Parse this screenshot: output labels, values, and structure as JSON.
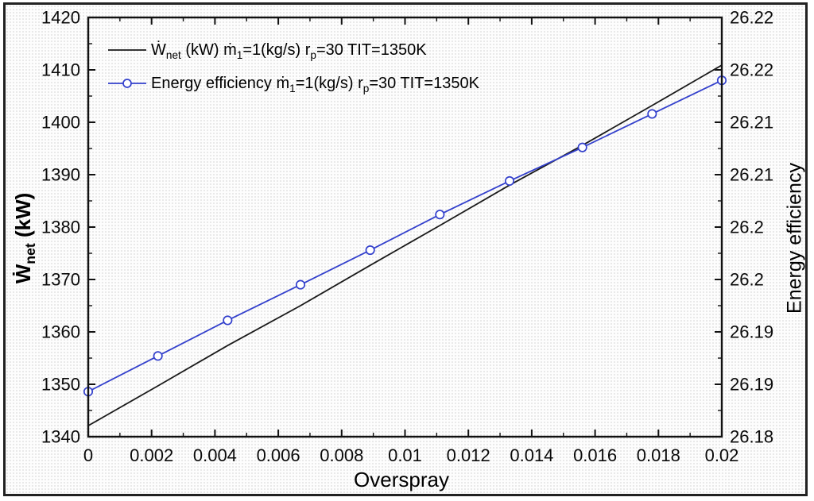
{
  "chart_data": {
    "type": "line",
    "title": "",
    "xlabel": "Overspray",
    "grid": false,
    "legend_position": "top-left-inside",
    "x": [
      0,
      0.0022,
      0.0044,
      0.0067,
      0.0089,
      0.0111,
      0.0133,
      0.0156,
      0.0178,
      0.02
    ],
    "series": [
      {
        "name": "Ẇ[net] (kW) ṁ[1]=1(kg/s) r[p]=30 TIT=1350K",
        "axis": "left",
        "color": "#1a1a1a",
        "marker": "none",
        "values": [
          1342.1,
          1349.7,
          1357.4,
          1365.0,
          1372.7,
          1380.3,
          1388.0,
          1395.6,
          1403.2,
          1410.9
        ]
      },
      {
        "name": "Energy efficiency ṁ[1]=1(kg/s) r[p]=30 TIT=1350K",
        "axis": "right",
        "color": "#3340cc",
        "marker": "circle-open",
        "values": [
          26.1843,
          26.1877,
          26.1911,
          26.1945,
          26.1978,
          26.2012,
          26.2044,
          26.2076,
          26.2108,
          26.214
        ]
      }
    ],
    "x_axis": {
      "label": "Overspray",
      "min": 0,
      "max": 0.02,
      "major_step": 0.002,
      "minor_step": 0.001,
      "tick_labels": [
        "0",
        "0.002",
        "0.004",
        "0.006",
        "0.008",
        "0.01",
        "0.012",
        "0.014",
        "0.016",
        "0.018",
        "0.02"
      ]
    },
    "left_axis": {
      "label": "Ẇ[net] (kW)",
      "min": 1340,
      "max": 1420,
      "major_step": 10,
      "minor_step": 5,
      "tick_labels": [
        "1340",
        "1350",
        "1360",
        "1370",
        "1380",
        "1390",
        "1400",
        "1410",
        "1420"
      ]
    },
    "right_axis": {
      "label": "Energy efficiency",
      "min": 26.18,
      "max": 26.22,
      "major_step": 0.005,
      "minor_step": 0.0025,
      "tick_labels": [
        "26.18",
        "26.19",
        "26.19",
        "26.2",
        "26.2",
        "26.21",
        "26.21",
        "26.22",
        "26.22"
      ]
    }
  },
  "colors": {
    "frame_border": "#222222",
    "plot_border": "#111111",
    "background": "#fdfdfd",
    "text": "#0a0a0a"
  }
}
